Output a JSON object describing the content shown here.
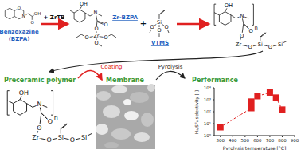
{
  "top": {
    "benzoxazine_name": "Benzoxazine",
    "benzoxazine_abbr": "(BZPA)",
    "reagent1": "+ ZrTB",
    "complex": "Zr-BZPA",
    "plus": "+",
    "reagent2": "VTMS"
  },
  "atoms": {
    "benzoxazine": [
      "O",
      "N",
      "O",
      "OH"
    ],
    "zr_bzpa": [
      "OH",
      "N",
      "O",
      "O",
      "Zr",
      "O",
      "O",
      "O"
    ],
    "vtms": [
      "Si",
      "O",
      "O",
      "O"
    ],
    "polymer": [
      "OH",
      "N",
      "n",
      "O",
      "O",
      "Zr",
      "O",
      "Si",
      "O",
      "Si"
    ]
  },
  "steps": {
    "coating": "Coating",
    "pyrolysis": "Pyrolysis"
  },
  "panels": {
    "left": "Preceramic polymer",
    "middle": "Membrane",
    "right": "Performance"
  },
  "chart_data": {
    "type": "scatter",
    "x_label": "Pyrolysis temperature [°C]",
    "y_label": "H₂/SF₆ selectivity [-]",
    "x": [
      300,
      550,
      550,
      600,
      700,
      750,
      800
    ],
    "values": [
      5,
      200,
      700,
      2000,
      4000,
      1500,
      150
    ],
    "color": "#e02020",
    "marker": "square",
    "line_style": "dashed",
    "log": "y",
    "xlim": [
      250,
      900
    ],
    "xticks": [
      300,
      400,
      500,
      600,
      700,
      800,
      900
    ],
    "ylim": [
      1,
      10000
    ],
    "yticks": [
      {
        "value": 1,
        "label": "10⁰"
      },
      {
        "value": 10,
        "label": "10¹"
      },
      {
        "value": 100,
        "label": "10²"
      },
      {
        "value": 1000,
        "label": "10³"
      },
      {
        "value": 10000,
        "label": "10⁴"
      }
    ]
  }
}
